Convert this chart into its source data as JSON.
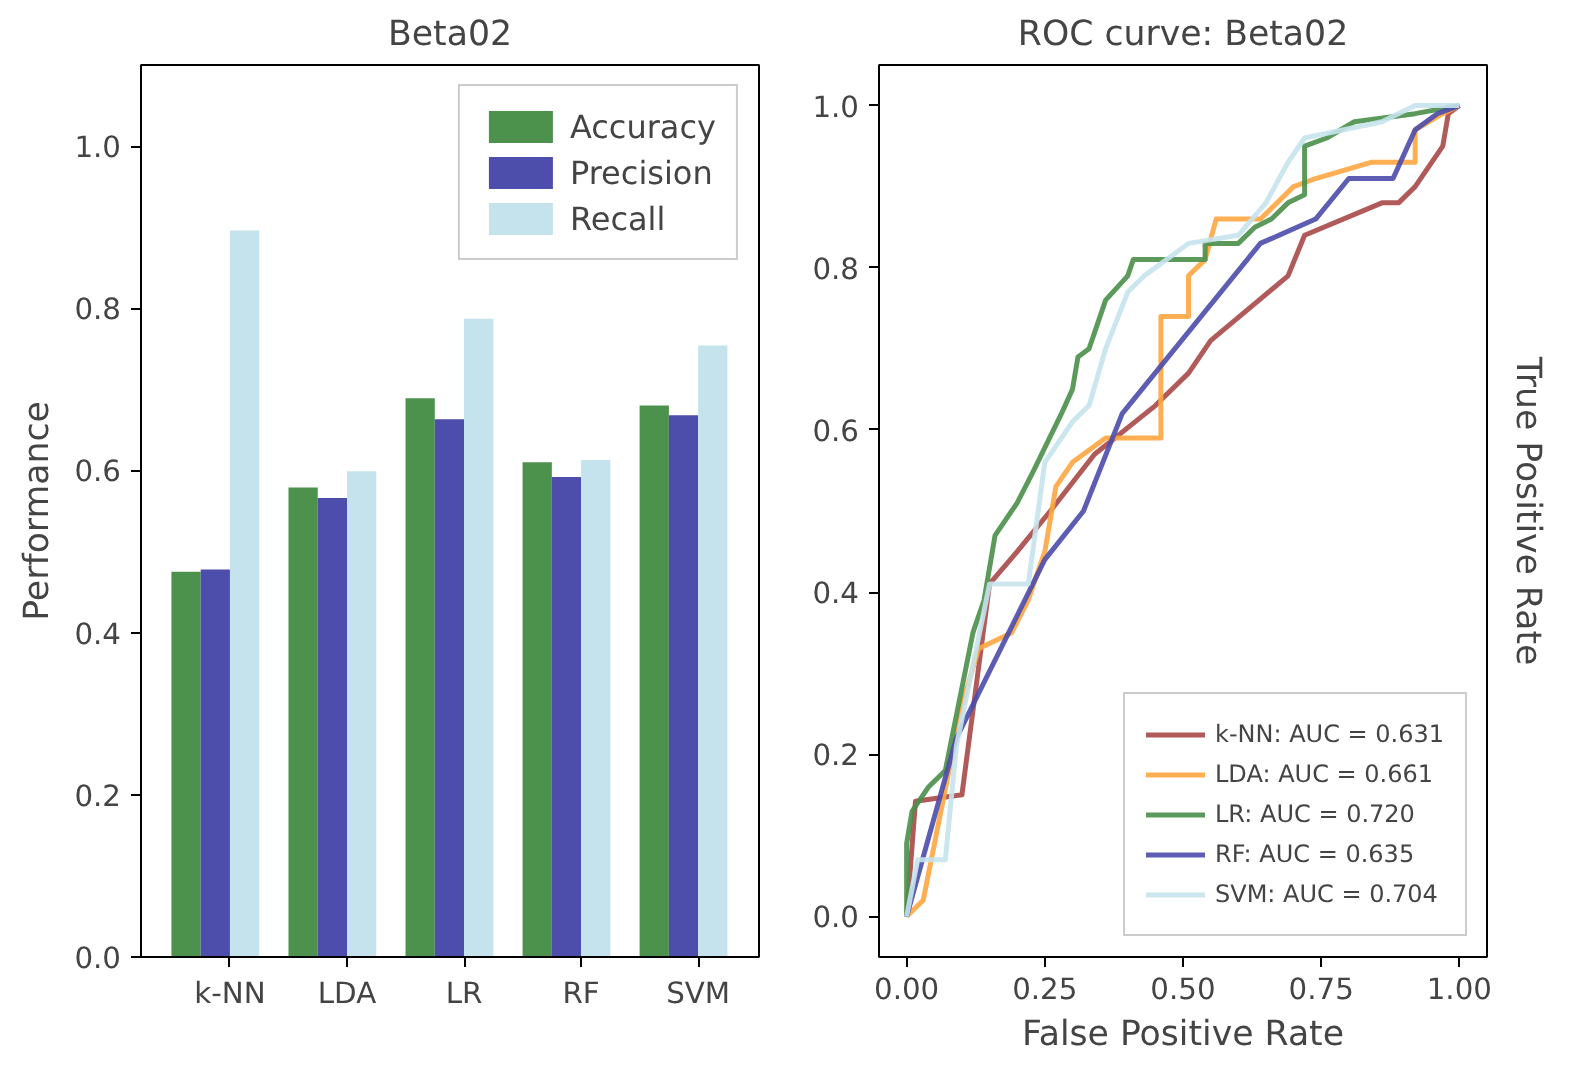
{
  "chart_data": [
    {
      "type": "bar",
      "title": "Beta02",
      "ylabel": "Performance",
      "categories": [
        "k-NN",
        "LDA",
        "LR",
        "RF",
        "SVM"
      ],
      "series": [
        {
          "name": "Accuracy",
          "color": "#4c914c",
          "values": [
            0.475,
            0.579,
            0.689,
            0.61,
            0.68
          ]
        },
        {
          "name": "Precision",
          "color": "#4d4dab",
          "values": [
            0.478,
            0.566,
            0.663,
            0.592,
            0.668
          ]
        },
        {
          "name": "Recall",
          "color": "#c5e3ec",
          "values": [
            0.896,
            0.599,
            0.787,
            0.613,
            0.754
          ]
        }
      ],
      "ylim": [
        0,
        1.1
      ],
      "yticks": [
        {
          "value": 0,
          "label": "0.0"
        },
        {
          "value": 0.2,
          "label": "0.2"
        },
        {
          "value": 0.4,
          "label": "0.4"
        },
        {
          "value": 0.6,
          "label": "0.6"
        },
        {
          "value": 0.8,
          "label": "0.8"
        },
        {
          "value": 1.0,
          "label": "1.0"
        }
      ],
      "grid": false,
      "legend": "top right"
    },
    {
      "type": "line",
      "title": "ROC curve: Beta02",
      "xlabel": "False Positive Rate",
      "y2label": "True Positive Rate",
      "series": [
        {
          "name": "k-NN: AUC = 0.631",
          "color": "#a84848",
          "x": [
            0,
            0.016,
            0.1,
            0.15,
            0.2,
            0.26,
            0.34,
            0.45,
            0.51,
            0.55,
            0.69,
            0.72,
            0.86,
            0.89,
            0.92,
            0.97,
            0.98,
            1.0
          ],
          "values": [
            0,
            0.142,
            0.15,
            0.41,
            0.45,
            0.5,
            0.57,
            0.63,
            0.67,
            0.71,
            0.79,
            0.84,
            0.88,
            0.88,
            0.9,
            0.95,
            0.99,
            1.0
          ]
        },
        {
          "name": "LDA: AUC = 0.661",
          "color": "#ffa640",
          "x": [
            0,
            0.03,
            0.1,
            0.13,
            0.19,
            0.22,
            0.25,
            0.27,
            0.3,
            0.36,
            0.46,
            0.46,
            0.51,
            0.51,
            0.54,
            0.56,
            0.64,
            0.7,
            0.74,
            0.84,
            0.92,
            0.92,
            0.97,
            1.0
          ],
          "values": [
            0,
            0.02,
            0.26,
            0.33,
            0.35,
            0.39,
            0.45,
            0.53,
            0.56,
            0.59,
            0.59,
            0.74,
            0.74,
            0.79,
            0.81,
            0.86,
            0.86,
            0.9,
            0.91,
            0.93,
            0.93,
            0.97,
            0.99,
            1.0
          ]
        },
        {
          "name": "LR: AUC = 0.720",
          "color": "#4a8f4a",
          "x": [
            0,
            0,
            0.01,
            0.04,
            0.07,
            0.12,
            0.14,
            0.16,
            0.2,
            0.23,
            0.28,
            0.3,
            0.31,
            0.33,
            0.36,
            0.4,
            0.41,
            0.54,
            0.54,
            0.6,
            0.63,
            0.66,
            0.69,
            0.72,
            0.72,
            0.76,
            0.81,
            0.92,
            1.0
          ],
          "values": [
            0,
            0.09,
            0.13,
            0.16,
            0.18,
            0.35,
            0.39,
            0.47,
            0.51,
            0.55,
            0.62,
            0.65,
            0.69,
            0.7,
            0.76,
            0.79,
            0.81,
            0.81,
            0.83,
            0.83,
            0.85,
            0.86,
            0.88,
            0.89,
            0.95,
            0.96,
            0.98,
            0.99,
            1.0
          ]
        },
        {
          "name": "RF: AUC = 0.635",
          "color": "#4b4bab",
          "x": [
            0,
            0.09,
            0.25,
            0.32,
            0.39,
            0.64,
            0.74,
            0.8,
            0.88,
            0.92,
            0.96,
            1.0
          ],
          "values": [
            0,
            0.22,
            0.44,
            0.5,
            0.62,
            0.83,
            0.86,
            0.91,
            0.91,
            0.97,
            0.99,
            1.0
          ]
        },
        {
          "name": "SVM: AUC = 0.704",
          "color": "#c5e3ec",
          "x": [
            0,
            0.02,
            0.07,
            0.09,
            0.15,
            0.22,
            0.25,
            0.3,
            0.33,
            0.36,
            0.4,
            0.43,
            0.51,
            0.6,
            0.65,
            0.69,
            0.72,
            0.86,
            0.92,
            1.0
          ],
          "values": [
            0,
            0.07,
            0.07,
            0.21,
            0.41,
            0.41,
            0.56,
            0.61,
            0.63,
            0.7,
            0.77,
            0.79,
            0.83,
            0.84,
            0.88,
            0.93,
            0.96,
            0.98,
            1.0,
            1.0
          ]
        }
      ],
      "xlim": [
        -0.05,
        1.05
      ],
      "ylim": [
        -0.05,
        1.05
      ],
      "xticks": [
        {
          "value": 0,
          "label": "0.00"
        },
        {
          "value": 0.25,
          "label": "0.25"
        },
        {
          "value": 0.5,
          "label": "0.50"
        },
        {
          "value": 0.75,
          "label": "0.75"
        },
        {
          "value": 1.0,
          "label": "1.00"
        }
      ],
      "yticks": [
        {
          "value": 0,
          "label": "0.0"
        },
        {
          "value": 0.2,
          "label": "0.2"
        },
        {
          "value": 0.4,
          "label": "0.4"
        },
        {
          "value": 0.6,
          "label": "0.6"
        },
        {
          "value": 0.8,
          "label": "0.8"
        },
        {
          "value": 1.0,
          "label": "1.0"
        }
      ],
      "grid": false,
      "legend": "bottom right",
      "line_style": "solid"
    }
  ]
}
